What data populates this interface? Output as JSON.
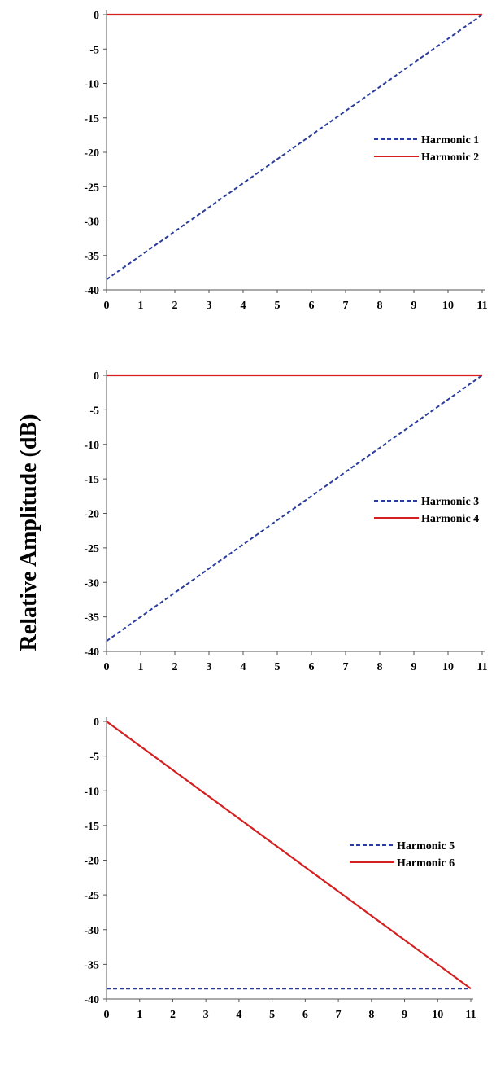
{
  "figure": {
    "ylabel": "Relative Amplitude (dB)"
  },
  "style": {
    "dashed_color": "#2a3d9c",
    "solid_color": "#d42020",
    "axis_color": "#555555"
  },
  "chart_data": [
    {
      "type": "line",
      "x": [
        0,
        11
      ],
      "xlim": [
        0,
        11
      ],
      "ylim": [
        -40,
        0
      ],
      "xticks": [
        "0",
        "1",
        "2",
        "3",
        "4",
        "5",
        "6",
        "7",
        "8",
        "9",
        "10",
        "11"
      ],
      "yticks": [
        "0",
        "-5",
        "-10",
        "-15",
        "-20",
        "-25",
        "-30",
        "-35",
        "-40"
      ],
      "legend_position": "right",
      "series": [
        {
          "name": "Harmonic 1",
          "style": "dashed",
          "y": [
            -38.5,
            0
          ]
        },
        {
          "name": "Harmonic 2",
          "style": "solid",
          "y": [
            0,
            0
          ]
        }
      ]
    },
    {
      "type": "line",
      "x": [
        0,
        11
      ],
      "xlim": [
        0,
        11
      ],
      "ylim": [
        -40,
        0
      ],
      "xticks": [
        "0",
        "1",
        "2",
        "3",
        "4",
        "5",
        "6",
        "7",
        "8",
        "9",
        "10",
        "11"
      ],
      "yticks": [
        "0",
        "-5",
        "-10",
        "-15",
        "-20",
        "-25",
        "-30",
        "-35",
        "-40"
      ],
      "legend_position": "right",
      "series": [
        {
          "name": "Harmonic 3",
          "style": "dashed",
          "y": [
            -38.5,
            0
          ]
        },
        {
          "name": "Harmonic 4",
          "style": "solid",
          "y": [
            0,
            0
          ]
        }
      ]
    },
    {
      "type": "line",
      "x": [
        0,
        11
      ],
      "xlim": [
        0,
        11
      ],
      "ylim": [
        -40,
        0
      ],
      "xticks": [
        "0",
        "1",
        "2",
        "3",
        "4",
        "5",
        "6",
        "7",
        "8",
        "9",
        "10",
        "11"
      ],
      "yticks": [
        "0",
        "-5",
        "-10",
        "-15",
        "-20",
        "-25",
        "-30",
        "-35",
        "-40"
      ],
      "legend_position": "right",
      "series": [
        {
          "name": "Harmonic 5",
          "style": "dashed",
          "y": [
            -38.5,
            -38.5
          ]
        },
        {
          "name": "Harmonic 6",
          "style": "solid",
          "y": [
            0,
            -38.5
          ]
        }
      ]
    }
  ]
}
